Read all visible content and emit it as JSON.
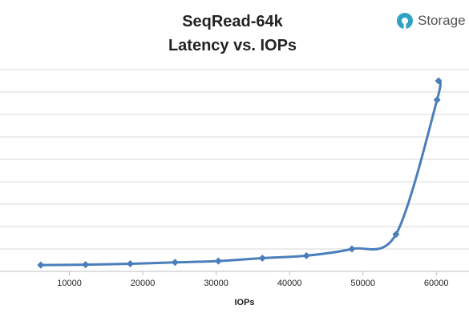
{
  "brand": {
    "text": "Storage",
    "logo_color": "#2ea3c4"
  },
  "chart_data": {
    "type": "line",
    "title_line1": "SeqRead-64k",
    "title_line2": "Latency vs. IOPs",
    "xlabel": "IOPs",
    "ylabel": "",
    "xlim": [
      0,
      65000
    ],
    "ylim": [
      0,
      9
    ],
    "xticks": [
      10000,
      20000,
      30000,
      40000,
      50000,
      60000
    ],
    "ytick_labels_shown": false,
    "grid": "horizontal",
    "legend": "none",
    "series_color": "#4a7ebb",
    "x": [
      6100,
      12200,
      18300,
      24400,
      30300,
      36300,
      42300,
      48500,
      54500,
      60100,
      60300
    ],
    "y": [
      0.28,
      0.3,
      0.34,
      0.4,
      0.46,
      0.59,
      0.7,
      1.0,
      1.65,
      7.65,
      8.5
    ]
  }
}
